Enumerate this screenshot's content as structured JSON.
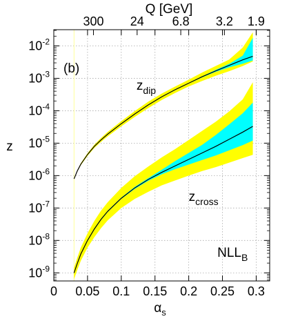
{
  "chart_data": {
    "type": "line",
    "panel_label": "(b)",
    "xlabel": "α",
    "xlabel_sub": "s",
    "ylabel": "z",
    "top_axis_label": "Q [GeV]",
    "xlim": [
      0,
      0.32
    ],
    "ylim_log10": [
      -9.25,
      -1.5
    ],
    "y_scale": "log",
    "grid": true,
    "x_ticks": [
      {
        "value": 0,
        "label": "0"
      },
      {
        "value": 0.05,
        "label": "0.05"
      },
      {
        "value": 0.1,
        "label": "0.1"
      },
      {
        "value": 0.15,
        "label": "0.15"
      },
      {
        "value": 0.2,
        "label": "0.2"
      },
      {
        "value": 0.25,
        "label": "0.25"
      },
      {
        "value": 0.3,
        "label": "0.3"
      }
    ],
    "y_ticks": [
      {
        "exp": -9,
        "base": "10",
        "sup": "-9"
      },
      {
        "exp": -8,
        "base": "10",
        "sup": "-8"
      },
      {
        "exp": -7,
        "base": "10",
        "sup": "-7"
      },
      {
        "exp": -6,
        "base": "10",
        "sup": "-6"
      },
      {
        "exp": -5,
        "base": "10",
        "sup": "-5"
      },
      {
        "exp": -4,
        "base": "10",
        "sup": "-4"
      },
      {
        "exp": -3,
        "base": "10",
        "sup": "-3"
      },
      {
        "exp": -2,
        "base": "10",
        "sup": "-2"
      }
    ],
    "top_ticks": [
      {
        "alpha": 0.0588,
        "label": "300"
      },
      {
        "alpha": 0.1235,
        "label": "24"
      },
      {
        "alpha": 0.1882,
        "label": "6.8"
      },
      {
        "alpha": 0.2529,
        "label": "3.2"
      },
      {
        "alpha": 0.3,
        "label": "1.9"
      }
    ],
    "annotations": [
      {
        "name": "zdip-label",
        "main": "z",
        "sub": "dip",
        "alpha": 0.137,
        "log10": -3.35
      },
      {
        "name": "zcross-label",
        "main": "z",
        "sub": "cross",
        "alpha": 0.222,
        "log10": -6.78
      },
      {
        "name": "nllb-label",
        "main": "NLL",
        "sub": "B",
        "alpha": 0.265,
        "log10": -8.5
      }
    ],
    "vertical_marker": {
      "alpha": 0.03,
      "color": "#ffff99"
    },
    "colors": {
      "outer_band": "#ffff00",
      "inner_band": "#00ffff",
      "central_line": "#000000",
      "grid": "#a8a8a8"
    },
    "series": [
      {
        "name": "z_dip",
        "x": [
          0.03,
          0.035,
          0.04,
          0.05,
          0.06,
          0.07,
          0.08,
          0.1,
          0.12,
          0.14,
          0.16,
          0.18,
          0.2,
          0.22,
          0.24,
          0.26,
          0.28,
          0.295
        ],
        "y_log10": [
          -6.1,
          -5.85,
          -5.65,
          -5.35,
          -5.1,
          -4.9,
          -4.72,
          -4.4,
          -4.1,
          -3.82,
          -3.57,
          -3.35,
          -3.15,
          -2.95,
          -2.77,
          -2.6,
          -2.43,
          -2.32
        ],
        "outer_upper": [
          -6.08,
          -5.83,
          -5.62,
          -5.31,
          -5.05,
          -4.84,
          -4.65,
          -4.32,
          -4.01,
          -3.72,
          -3.47,
          -3.25,
          -3.04,
          -2.82,
          -2.62,
          -2.42,
          -2.05,
          -1.58
        ],
        "outer_lower": [
          -6.12,
          -5.87,
          -5.68,
          -5.39,
          -5.15,
          -4.96,
          -4.79,
          -4.48,
          -4.19,
          -3.92,
          -3.67,
          -3.45,
          -3.25,
          -3.08,
          -2.92,
          -2.78,
          -2.62,
          -2.48
        ],
        "inner_upper": [
          -6.09,
          -5.84,
          -5.64,
          -5.34,
          -5.09,
          -4.89,
          -4.71,
          -4.39,
          -4.09,
          -3.81,
          -3.56,
          -3.34,
          -3.14,
          -2.94,
          -2.74,
          -2.55,
          -2.3,
          -1.75
        ],
        "inner_lower": [
          -6.11,
          -5.86,
          -5.66,
          -5.36,
          -5.11,
          -4.91,
          -4.73,
          -4.41,
          -4.11,
          -3.83,
          -3.58,
          -3.36,
          -3.16,
          -2.97,
          -2.8,
          -2.66,
          -2.55,
          -2.45
        ]
      },
      {
        "name": "z_cross",
        "x": [
          0.03,
          0.035,
          0.04,
          0.05,
          0.06,
          0.07,
          0.08,
          0.1,
          0.12,
          0.14,
          0.16,
          0.18,
          0.2,
          0.22,
          0.24,
          0.26,
          0.28,
          0.295
        ],
        "y_log10": [
          -9.0,
          -8.7,
          -8.42,
          -8.0,
          -7.65,
          -7.35,
          -7.1,
          -6.7,
          -6.38,
          -6.12,
          -5.9,
          -5.7,
          -5.5,
          -5.3,
          -5.1,
          -4.88,
          -4.66,
          -4.48
        ],
        "outer_upper": [
          -8.85,
          -8.52,
          -8.22,
          -7.78,
          -7.4,
          -7.08,
          -6.82,
          -6.38,
          -6.02,
          -5.72,
          -5.44,
          -5.18,
          -4.9,
          -4.62,
          -4.34,
          -4.02,
          -3.65,
          -3.12
        ],
        "outer_lower": [
          -9.2,
          -8.9,
          -8.63,
          -8.22,
          -7.9,
          -7.62,
          -7.38,
          -7.0,
          -6.72,
          -6.5,
          -6.3,
          -6.15,
          -6.0,
          -5.86,
          -5.74,
          -5.6,
          -5.46,
          -5.36
        ],
        "inner_upper": [
          -8.98,
          -8.68,
          -8.4,
          -7.98,
          -7.63,
          -7.33,
          -7.08,
          -6.68,
          -6.35,
          -6.08,
          -5.82,
          -5.55,
          -5.3,
          -5.05,
          -4.75,
          -4.42,
          -4.08,
          -3.75
        ],
        "inner_lower": [
          -9.02,
          -8.72,
          -8.44,
          -8.02,
          -7.67,
          -7.37,
          -7.12,
          -6.72,
          -6.41,
          -6.16,
          -5.96,
          -5.8,
          -5.66,
          -5.52,
          -5.38,
          -5.22,
          -5.06,
          -4.92
        ]
      }
    ]
  }
}
